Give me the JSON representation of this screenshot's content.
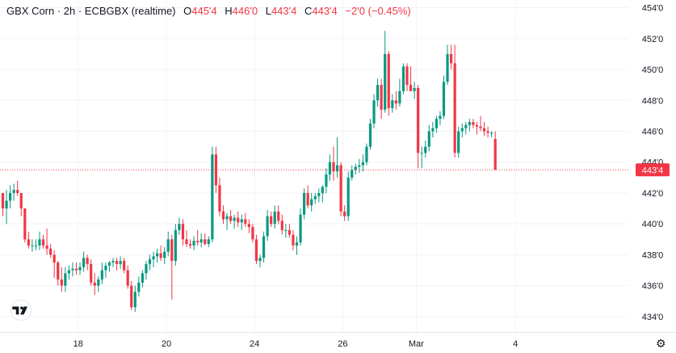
{
  "header": {
    "symbol": "GBX Corn · 2h · ECBGBX (realtime)",
    "o_label": "O",
    "o_val": "445'4",
    "h_label": "H",
    "h_val": "446'0",
    "l_label": "L",
    "l_val": "443'4",
    "c_label": "C",
    "c_val": "443'4",
    "change": "−2'0 (−0.45%)"
  },
  "colors": {
    "up": "#089981",
    "down": "#f23645",
    "grid": "#f0f3fa",
    "text": "#131722"
  },
  "icons": {
    "logo": "tradingview-logo-icon",
    "settings": "gear-icon"
  },
  "chart_data": {
    "type": "candlestick",
    "ylim": [
      433,
      454.5
    ],
    "y_ticks": [
      434,
      436,
      438,
      440,
      442,
      444,
      446,
      448,
      450,
      452,
      454
    ],
    "y_tick_labels": [
      "434'0",
      "436'0",
      "438'0",
      "440'0",
      "442'0",
      "444'0",
      "446'0",
      "448'0",
      "450'0",
      "452'0",
      "454'0"
    ],
    "x_ticks": [
      {
        "index": 20.5,
        "label": "18"
      },
      {
        "index": 44.5,
        "label": "20"
      },
      {
        "index": 68.5,
        "label": "24"
      },
      {
        "index": 92.5,
        "label": "26"
      },
      {
        "index": 112.5,
        "label": "Mar"
      },
      {
        "index": 139.5,
        "label": "4"
      }
    ],
    "last_price": 443.5,
    "last_price_label": "443'4",
    "candles": [
      [
        442,
        442,
        440.5,
        441
      ],
      [
        441,
        442.2,
        440,
        441.5
      ],
      [
        441.5,
        442.5,
        441,
        442
      ],
      [
        442,
        442.6,
        441.5,
        442.2
      ],
      [
        442.2,
        442.8,
        441.8,
        442
      ],
      [
        442,
        442,
        440.5,
        441
      ],
      [
        441,
        441,
        438.8,
        439
      ],
      [
        439,
        439.5,
        438.4,
        438.6
      ],
      [
        438.6,
        439,
        438.2,
        438.6
      ],
      [
        438.6,
        439,
        438.3,
        438.6
      ],
      [
        438.6,
        439.5,
        438.3,
        439
      ],
      [
        439,
        439.3,
        438.4,
        438.6
      ],
      [
        438.6,
        439.7,
        438,
        438.4
      ],
      [
        438.4,
        438.7,
        437.8,
        438
      ],
      [
        438,
        438.3,
        436.5,
        437.5
      ],
      [
        437.5,
        437.6,
        436,
        436.4
      ],
      [
        436.4,
        437.2,
        435.6,
        436
      ],
      [
        436,
        437.2,
        435.6,
        436.8
      ],
      [
        436.8,
        437.3,
        436.4,
        437
      ],
      [
        437,
        437.5,
        436.6,
        437.1
      ],
      [
        437.1,
        437.5,
        436.7,
        437
      ],
      [
        437,
        437.5,
        436.7,
        437.2
      ],
      [
        437.2,
        438.2,
        436.9,
        437.8
      ],
      [
        437.8,
        438,
        437,
        437.4
      ],
      [
        437.4,
        437.7,
        436,
        436.2
      ],
      [
        436.2,
        436.8,
        435.4,
        436
      ],
      [
        436,
        436.6,
        435.6,
        436.4
      ],
      [
        436.4,
        437.5,
        436.1,
        437
      ],
      [
        437,
        437.5,
        436.5,
        437.3
      ],
      [
        437.3,
        437.6,
        436.9,
        437.5
      ],
      [
        437.5,
        437.8,
        437.2,
        437.6
      ],
      [
        437.6,
        437.8,
        437,
        437.4
      ],
      [
        437.4,
        437.9,
        437.1,
        437.6
      ],
      [
        437.6,
        437.8,
        436.8,
        437
      ],
      [
        437,
        437.3,
        435.8,
        436
      ],
      [
        436,
        436.3,
        434.4,
        434.6
      ],
      [
        434.6,
        436,
        434.3,
        435.6
      ],
      [
        435.6,
        436.6,
        435.3,
        436.2
      ],
      [
        436.2,
        437,
        435.9,
        436.8
      ],
      [
        436.8,
        437.6,
        436.4,
        437.4
      ],
      [
        437.4,
        438,
        437,
        437.7
      ],
      [
        437.7,
        438.2,
        437.2,
        437.9
      ],
      [
        437.9,
        438.4,
        437.5,
        438.1
      ],
      [
        438.1,
        438.6,
        437.6,
        437.8
      ],
      [
        437.8,
        438.5,
        437.4,
        438.2
      ],
      [
        438.2,
        439.5,
        437.9,
        439
      ],
      [
        439,
        439.3,
        435.1,
        437.6
      ],
      [
        437.6,
        440,
        437.3,
        439.6
      ],
      [
        439.6,
        440.4,
        439.3,
        440
      ],
      [
        440,
        440.3,
        438.6,
        439
      ],
      [
        439,
        439.6,
        438.5,
        438.7
      ],
      [
        438.7,
        439,
        438.4,
        438.6
      ],
      [
        438.6,
        439.2,
        438.3,
        438.9
      ],
      [
        438.9,
        439.6,
        438.6,
        438.8
      ],
      [
        438.8,
        439.4,
        438.5,
        439
      ],
      [
        439,
        439.4,
        438.6,
        438.7
      ],
      [
        438.7,
        439.2,
        438.5,
        439
      ],
      [
        439,
        445,
        438.8,
        444.5
      ],
      [
        444.5,
        445,
        442,
        442.5
      ],
      [
        442.5,
        443,
        440.5,
        440.8
      ],
      [
        440.8,
        441.2,
        440,
        440.3
      ],
      [
        440.3,
        440.7,
        439.6,
        440.5
      ],
      [
        440.5,
        440.9,
        440,
        440.2
      ],
      [
        440.2,
        440.6,
        439.7,
        440.4
      ],
      [
        440.4,
        440.8,
        439.8,
        440.1
      ],
      [
        440.1,
        440.6,
        439.6,
        440.3
      ],
      [
        440.3,
        440.7,
        439.8,
        440
      ],
      [
        440,
        440.3,
        439.4,
        439.8
      ],
      [
        439.8,
        440,
        438.8,
        439
      ],
      [
        439,
        439.3,
        437.4,
        437.6
      ],
      [
        437.6,
        438,
        437.2,
        437.8
      ],
      [
        437.8,
        439.5,
        437.5,
        439.2
      ],
      [
        439.2,
        440.9,
        438.9,
        440.5
      ],
      [
        440.5,
        440.8,
        439.8,
        440
      ],
      [
        440,
        441.2,
        439.7,
        440.8
      ],
      [
        440.8,
        441.2,
        440,
        440.2
      ],
      [
        440.2,
        440.6,
        439.3,
        439.6
      ],
      [
        439.6,
        440,
        439.1,
        439.6
      ],
      [
        439.6,
        440,
        439.1,
        439.3
      ],
      [
        439.3,
        439.6,
        438.3,
        438.6
      ],
      [
        438.6,
        439.2,
        438,
        438.8
      ],
      [
        438.8,
        441,
        438.6,
        440.6
      ],
      [
        440.6,
        442.3,
        440.3,
        442
      ],
      [
        442,
        442.5,
        441,
        441.2
      ],
      [
        441.2,
        442,
        440.8,
        441.6
      ],
      [
        441.6,
        442,
        441.3,
        441.8
      ],
      [
        441.8,
        442.3,
        441.4,
        442
      ],
      [
        442,
        442.5,
        441.4,
        442.4
      ],
      [
        442.4,
        443.6,
        442,
        443.2
      ],
      [
        443.2,
        444.5,
        442.8,
        444
      ],
      [
        444,
        445,
        442.8,
        443.4
      ],
      [
        443.4,
        445.6,
        443,
        443.8
      ],
      [
        443.8,
        444,
        440.5,
        440.8
      ],
      [
        440.8,
        441.2,
        440.2,
        440.5
      ],
      [
        440.5,
        443.4,
        440.2,
        443
      ],
      [
        443,
        443.8,
        442.8,
        443.5
      ],
      [
        443.5,
        443.9,
        443.2,
        443.7
      ],
      [
        443.7,
        444.2,
        443.3,
        443.8
      ],
      [
        443.8,
        444.5,
        443.4,
        444
      ],
      [
        444,
        445.2,
        443.8,
        445
      ],
      [
        445,
        446.8,
        444.8,
        446.5
      ],
      [
        446.5,
        448.4,
        446.2,
        448
      ],
      [
        448,
        449.4,
        447.6,
        449
      ],
      [
        449,
        449.4,
        446.8,
        447.4
      ],
      [
        447.4,
        452.5,
        447.2,
        451
      ],
      [
        451,
        451.2,
        447,
        447.5
      ],
      [
        447.5,
        448.4,
        447.2,
        448
      ],
      [
        448,
        448.6,
        447.4,
        447.8
      ],
      [
        447.8,
        449.4,
        447.6,
        448.6
      ],
      [
        448.6,
        450.4,
        448.4,
        450.2
      ],
      [
        450.2,
        450.4,
        448.6,
        449
      ],
      [
        449,
        450.2,
        448.6,
        448.6
      ],
      [
        448.6,
        449.2,
        448.1,
        448.8
      ],
      [
        448.8,
        449,
        443.6,
        444.6
      ],
      [
        444.6,
        445,
        443.6,
        444.6
      ],
      [
        444.6,
        445.4,
        444.3,
        445
      ],
      [
        445,
        446.4,
        444.7,
        446
      ],
      [
        446,
        446.6,
        445.6,
        446.2
      ],
      [
        446.2,
        447,
        445.9,
        446.8
      ],
      [
        446.8,
        447.3,
        446.4,
        447
      ],
      [
        447,
        449.6,
        446.8,
        449.2
      ],
      [
        449.2,
        451.6,
        449,
        451
      ],
      [
        451,
        451.6,
        450,
        450.4
      ],
      [
        450.4,
        451.6,
        444.3,
        444.6
      ],
      [
        444.6,
        446.3,
        444.3,
        446
      ],
      [
        446,
        446.5,
        445.6,
        446.2
      ],
      [
        446.2,
        446.6,
        445.8,
        446.4
      ],
      [
        446.4,
        446.8,
        446,
        446.6
      ],
      [
        446.6,
        446.8,
        446.2,
        446.4
      ],
      [
        446.4,
        446.6,
        445.8,
        446.3
      ],
      [
        446.3,
        447,
        446,
        446.2
      ],
      [
        446.2,
        446.6,
        445.7,
        446
      ],
      [
        446,
        446.3,
        445.6,
        445.9
      ],
      [
        445.9,
        446,
        445.6,
        445.9
      ],
      [
        445.5,
        446,
        443.5,
        443.5
      ]
    ]
  }
}
